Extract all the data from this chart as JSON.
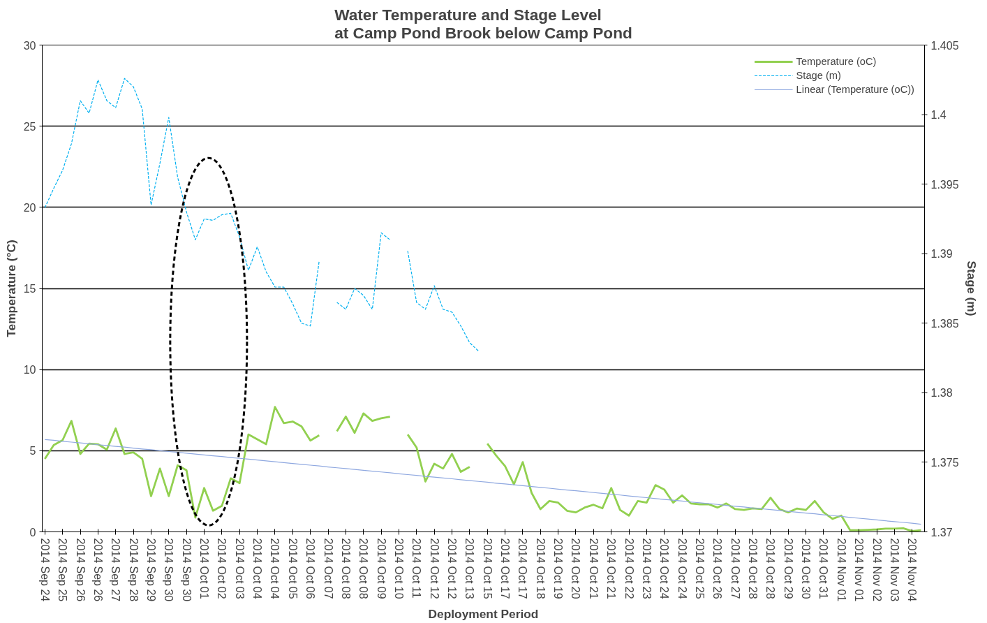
{
  "chart_data": {
    "type": "line",
    "title": "Water Temperature and Stage Level\nat Camp Pond Brook below Camp Pond",
    "xlabel": "Deployment Period",
    "ylabel": "Temperature (°C)",
    "y2label": "Stage (m)",
    "categories": [
      "2014 Sep 24",
      null,
      "2014 Sep 25",
      null,
      "2014 Sep 26",
      null,
      "2014 Sep 26",
      null,
      "2014 Sep 27",
      null,
      "2014 Sep 28",
      null,
      "2014 Sep 29",
      null,
      "2014 Sep 30",
      null,
      "2014 Sep 30",
      null,
      "2014 Oct 01",
      null,
      "2014 Oct 02",
      null,
      "2014 Oct 03",
      null,
      "2014 Oct 04",
      null,
      "2014 Oct 04",
      null,
      "2014 Oct 05",
      null,
      "2014 Oct 06",
      null,
      "2014 Oct 07",
      null,
      "2014 Oct 08",
      null,
      "2014 Oct 08",
      null,
      "2014 Oct 09",
      null,
      "2014 Oct 10",
      null,
      "2014 Oct 11",
      null,
      "2014 Oct 12",
      null,
      "2014 Oct 12",
      null,
      "2014 Oct 13",
      null,
      "2014 Oct 15",
      null,
      "2014 Oct 17",
      null,
      "2014 Oct 17",
      null,
      "2014 Oct 18",
      null,
      "2014 Oct 19",
      null,
      "2014 Oct 20",
      null,
      "2014 Oct 21",
      null,
      "2014 Oct 21",
      null,
      "2014 Oct 22",
      null,
      "2014 Oct 23",
      null,
      "2014 Oct 24",
      null,
      "2014 Oct 24",
      null,
      "2014 Oct 25",
      null,
      "2014 Oct 26",
      null,
      "2014 Oct 27",
      null,
      "2014 Oct 28",
      null,
      "2014 Oct 28",
      null,
      "2014 Oct 29",
      null,
      "2014 Oct 30",
      null,
      "2014 Oct 31",
      null,
      "2014 Nov 01",
      null,
      "2014 Nov 01",
      null,
      "2014 Nov 02",
      null,
      "2014 Nov 03",
      null,
      "2014 Nov 04",
      null
    ],
    "ylim": [
      0,
      30
    ],
    "yticks": [
      0,
      5,
      10,
      15,
      20,
      25,
      30
    ],
    "y2lim": [
      1.37,
      1.405
    ],
    "y2ticks": [
      1.37,
      1.375,
      1.38,
      1.385,
      1.39,
      1.395,
      1.4,
      1.405
    ],
    "grid": "y",
    "legend": "top right",
    "series": [
      {
        "name": "Temperature (oC)",
        "color": "#92d050",
        "line_style": "solid",
        "values": [
          4.5,
          5.35,
          5.65,
          6.84,
          4.8,
          5.44,
          5.4,
          5.07,
          6.37,
          4.8,
          4.9,
          4.5,
          2.2,
          3.9,
          2.2,
          4.1,
          3.8,
          0.88,
          2.7,
          1.3,
          1.6,
          3.3,
          3.0,
          6.0,
          5.7,
          5.4,
          7.7,
          6.7,
          6.8,
          6.5,
          5.63,
          5.95,
          null,
          6.2,
          7.1,
          6.1,
          7.3,
          6.84,
          7.0,
          7.1,
          null,
          6.0,
          5.2,
          3.1,
          4.2,
          3.9,
          4.8,
          3.7,
          4.0,
          null,
          5.44,
          4.7,
          4.05,
          2.93,
          4.3,
          2.4,
          1.4,
          1.9,
          1.8,
          1.3,
          1.2,
          1.5,
          1.67,
          1.45,
          2.7,
          1.35,
          1.0,
          1.9,
          1.8,
          2.88,
          2.6,
          1.8,
          2.25,
          1.75,
          1.7,
          1.7,
          1.5,
          1.75,
          1.4,
          1.35,
          1.45,
          1.4,
          2.1,
          1.4,
          1.2,
          1.44,
          1.35,
          1.9,
          1.2,
          0.8,
          1.0,
          0.1,
          0.1,
          0.12,
          0.15,
          0.2,
          0.2,
          0.22,
          0.05,
          0.1
        ]
      },
      {
        "name": "Stage (m)",
        "axis": "y2",
        "color": "#00b0f0",
        "line_style": "dashed",
        "values": [
          1.3933,
          1.3947,
          1.396,
          1.3979,
          1.401,
          1.4001,
          1.4025,
          1.401,
          1.4005,
          1.4026,
          1.402,
          1.4004,
          1.3935,
          1.3965,
          1.3998,
          1.3955,
          1.393,
          1.391,
          1.3925,
          1.3924,
          1.3928,
          1.3929,
          1.3912,
          1.3888,
          1.3905,
          1.3887,
          1.3876,
          1.3876,
          1.3864,
          1.385,
          1.3848,
          1.3895,
          null,
          1.3865,
          1.386,
          1.3875,
          1.387,
          1.386,
          1.3915,
          1.391,
          null,
          1.3902,
          1.3865,
          1.386,
          1.3877,
          1.386,
          1.3858,
          1.3848,
          1.3836,
          1.383,
          null,
          null,
          null,
          null,
          null,
          null,
          null,
          null,
          null,
          null,
          null,
          null,
          null,
          null,
          null,
          null,
          null,
          null,
          null,
          null,
          null,
          null,
          null,
          null,
          null,
          null,
          null,
          null,
          null,
          null,
          null,
          null,
          null,
          null,
          null,
          null,
          null,
          null,
          null,
          null,
          null,
          null,
          null,
          null,
          null,
          null,
          null,
          null,
          null,
          null
        ]
      },
      {
        "name": "Linear (Temperature (oC))",
        "color": "#8fa8e0",
        "line_style": "solid",
        "values": [
          5.69,
          5.64,
          5.58,
          5.53,
          5.48,
          5.43,
          5.37,
          5.32,
          5.27,
          5.22,
          5.16,
          5.11,
          5.06,
          5.0,
          4.95,
          4.9,
          4.85,
          4.79,
          4.74,
          4.69,
          4.64,
          4.58,
          4.53,
          4.48,
          4.43,
          4.37,
          4.32,
          4.27,
          4.21,
          4.16,
          4.11,
          4.06,
          4.0,
          3.95,
          3.9,
          3.85,
          3.79,
          3.74,
          3.69,
          3.64,
          3.58,
          3.53,
          3.48,
          3.42,
          3.37,
          3.32,
          3.27,
          3.21,
          3.16,
          3.11,
          3.06,
          3.0,
          2.95,
          2.9,
          2.85,
          2.79,
          2.74,
          2.69,
          2.63,
          2.58,
          2.53,
          2.48,
          2.42,
          2.37,
          2.32,
          2.27,
          2.21,
          2.16,
          2.11,
          2.05,
          2.0,
          1.95,
          1.9,
          1.84,
          1.79,
          1.74,
          1.69,
          1.63,
          1.58,
          1.53,
          1.47,
          1.42,
          1.37,
          1.32,
          1.26,
          1.21,
          1.16,
          1.11,
          1.05,
          1.0,
          0.95,
          0.89,
          0.84,
          0.79,
          0.74,
          0.68,
          0.63,
          0.58,
          0.53,
          0.47
        ]
      }
    ]
  }
}
